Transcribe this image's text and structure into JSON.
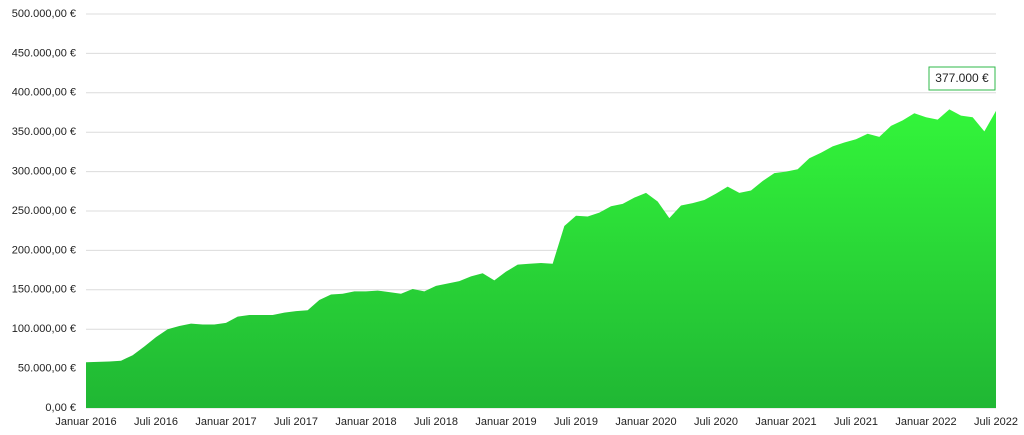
{
  "chart_data": {
    "type": "area",
    "categories": [
      "Januar 2016",
      null,
      null,
      null,
      null,
      null,
      "Juli 2016",
      null,
      null,
      null,
      null,
      null,
      "Januar 2017",
      null,
      null,
      null,
      null,
      null,
      "Juli 2017",
      null,
      null,
      null,
      null,
      null,
      "Januar 2018",
      null,
      null,
      null,
      null,
      null,
      "Juli 2018",
      null,
      null,
      null,
      null,
      null,
      "Januar 2019",
      null,
      null,
      null,
      null,
      null,
      "Juli 2019",
      null,
      null,
      null,
      null,
      null,
      "Januar 2020",
      null,
      null,
      null,
      null,
      null,
      "Juli 2020",
      null,
      null,
      null,
      null,
      null,
      "Januar 2021",
      null,
      null,
      null,
      null,
      null,
      "Juli 2021",
      null,
      null,
      null,
      null,
      null,
      "Januar 2022",
      null,
      null,
      null,
      null,
      null,
      "Juli 2022"
    ],
    "values": [
      58000,
      58500,
      59000,
      60000,
      67000,
      78000,
      90000,
      100000,
      104000,
      107000,
      106000,
      106000,
      108000,
      116000,
      118000,
      118000,
      118000,
      121000,
      123000,
      124000,
      137000,
      144000,
      145000,
      148000,
      148000,
      149000,
      147000,
      145000,
      151000,
      148000,
      155000,
      158000,
      161000,
      167000,
      171000,
      162000,
      173000,
      182000,
      183000,
      184000,
      183000,
      231000,
      244000,
      243000,
      248000,
      256000,
      259000,
      267000,
      273000,
      262000,
      241000,
      257000,
      260000,
      264000,
      272000,
      281000,
      273000,
      276000,
      288000,
      298000,
      300000,
      303000,
      317000,
      324000,
      332000,
      337000,
      341000,
      348000,
      344000,
      358000,
      365000,
      374000,
      369000,
      366000,
      379000,
      371000,
      369000,
      351000,
      377000
    ],
    "color": "#33f53a",
    "annotation": "377.000 €",
    "ylim": [
      0,
      500000
    ],
    "yticks": [
      {
        "value": 0,
        "label": "0,00 €"
      },
      {
        "value": 50000,
        "label": "50.000,00 €"
      },
      {
        "value": 100000,
        "label": "100.000,00 €"
      },
      {
        "value": 150000,
        "label": "150.000,00 €"
      },
      {
        "value": 200000,
        "label": "200.000,00 €"
      },
      {
        "value": 250000,
        "label": "250.000,00 €"
      },
      {
        "value": 300000,
        "label": "300.000,00 €"
      },
      {
        "value": 350000,
        "label": "350.000,00 €"
      },
      {
        "value": 400000,
        "label": "400.000,00 €"
      },
      {
        "value": 450000,
        "label": "450.000,00 €"
      },
      {
        "value": 500000,
        "label": "500.000,00 €"
      }
    ],
    "grid": true
  }
}
